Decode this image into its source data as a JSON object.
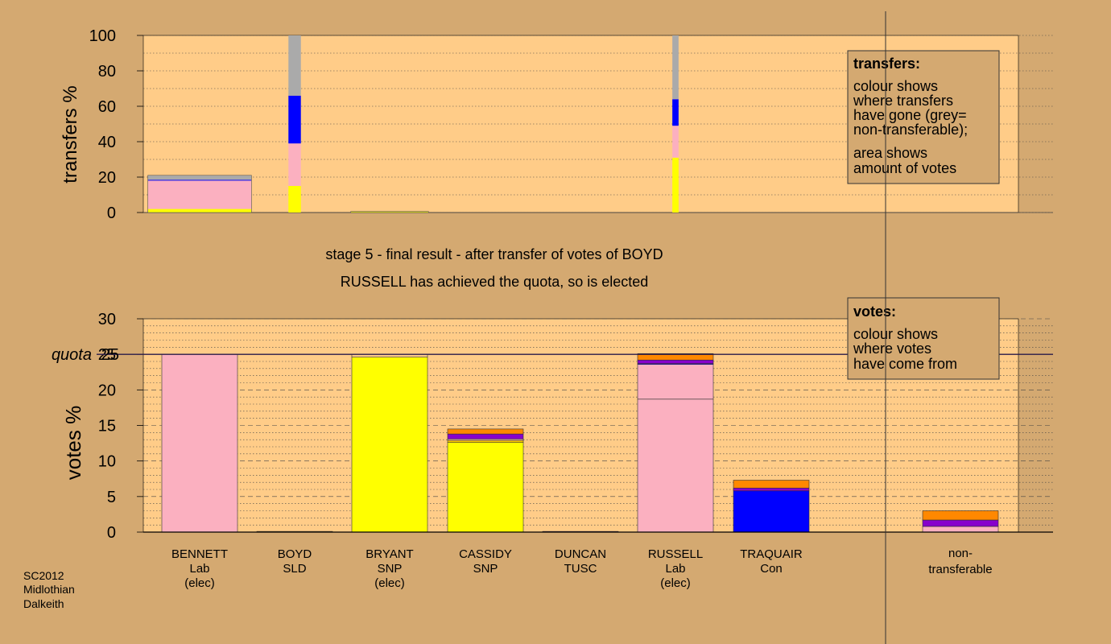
{
  "heading": {
    "line1": "stage 5 - final result - after transfer of votes of BOYD",
    "line2": "RUSSELL has achieved the quota, so is elected"
  },
  "footer": {
    "line1": "SC2012",
    "line2": "Midlothian",
    "line3": "Dalkeith"
  },
  "colors": {
    "background": "#d4a971",
    "plot_area": "#ffcc88",
    "Lab": "#fbb0c0",
    "SNP": "#ffff00",
    "Con": "#0000ff",
    "SLD": "#ffcc00",
    "TUSC": "#8800cc",
    "other": "#ff8800",
    "nontransferable": "#aaaaaa"
  },
  "chart_data": [
    {
      "type": "bar",
      "name": "transfers",
      "ylabel": "transfers %",
      "ylim": [
        0,
        100
      ],
      "yticks": [
        0,
        20,
        40,
        60,
        80,
        100
      ],
      "legend": {
        "title": "transfers:",
        "lines": [
          "colour shows",
          "where transfers",
          "have gone (grey=",
          "non-transferable);",
          "area shows",
          "amount of votes"
        ]
      },
      "bars": [
        {
          "category": "BENNETT",
          "width": 1.0,
          "segments": [
            {
              "color": "#ffff00",
              "value": 2
            },
            {
              "color": "#fbb0c0",
              "value": 16
            },
            {
              "color": "#0000ff",
              "value": 0.5
            },
            {
              "color": "#aaaaaa",
              "value": 2.5
            }
          ]
        },
        {
          "category": "BOYD",
          "width": 0.12,
          "segments": [
            {
              "color": "#ffff00",
              "value": 15
            },
            {
              "color": "#fbb0c0",
              "value": 24
            },
            {
              "color": "#0000ff",
              "value": 27
            },
            {
              "color": "#aaaaaa",
              "value": 34
            }
          ]
        },
        {
          "category": "BRYANT",
          "width": 0.75,
          "segments": [
            {
              "color": "#ffff00",
              "value": 0.6
            }
          ]
        },
        {
          "category": "RUSSELL",
          "width": 0.06,
          "segments": [
            {
              "color": "#ffff00",
              "value": 31
            },
            {
              "color": "#fbb0c0",
              "value": 18
            },
            {
              "color": "#0000ff",
              "value": 15
            },
            {
              "color": "#aaaaaa",
              "value": 36
            }
          ]
        }
      ]
    },
    {
      "type": "bar",
      "name": "votes",
      "ylabel": "votes %",
      "ylim": [
        0,
        30
      ],
      "yticks": [
        0,
        5,
        10,
        15,
        20,
        25,
        30
      ],
      "quota": 25,
      "quota_label": "quota",
      "legend": {
        "title": "votes:",
        "lines": [
          "colour shows",
          "where votes",
          "have come from"
        ]
      },
      "categories": [
        {
          "name": "BENNETT",
          "party": "Lab",
          "note": "(elec)"
        },
        {
          "name": "BOYD",
          "party": "SLD",
          "note": ""
        },
        {
          "name": "BRYANT",
          "party": "SNP",
          "note": "(elec)"
        },
        {
          "name": "CASSIDY",
          "party": "SNP",
          "note": ""
        },
        {
          "name": "DUNCAN",
          "party": "TUSC",
          "note": ""
        },
        {
          "name": "RUSSELL",
          "party": "Lab",
          "note": "(elec)"
        },
        {
          "name": "TRAQUAIR",
          "party": "Con",
          "note": ""
        }
      ],
      "nontransferable_label": [
        "non-",
        "transferable"
      ],
      "bars": [
        {
          "category": "BENNETT",
          "segments": [
            {
              "color": "#fbb0c0",
              "value": 25.0
            }
          ]
        },
        {
          "category": "BOYD",
          "segments": [
            {
              "color": "#ffcc00",
              "value": 0.1
            }
          ]
        },
        {
          "category": "BRYANT",
          "segments": [
            {
              "color": "#ffff00",
              "value": 24.6
            },
            {
              "color": "#ffcc88",
              "value": 0.4
            }
          ]
        },
        {
          "category": "CASSIDY",
          "segments": [
            {
              "color": "#ffff00",
              "value": 12.6
            },
            {
              "color": "#ffcc00",
              "value": 0.3
            },
            {
              "color": "#fbb0c0",
              "value": 0.2
            },
            {
              "color": "#8800cc",
              "value": 0.7
            },
            {
              "color": "#ff8800",
              "value": 0.7
            }
          ]
        },
        {
          "category": "DUNCAN",
          "segments": [
            {
              "color": "#8800cc",
              "value": 0.1
            }
          ]
        },
        {
          "category": "RUSSELL",
          "segments": [
            {
              "color": "#fbb0c0",
              "value": 18.7
            },
            {
              "color": "#fbb0c0",
              "value": 4.9
            },
            {
              "color": "#0000ff",
              "value": 0.1
            },
            {
              "color": "#8800cc",
              "value": 0.5
            },
            {
              "color": "#ff8800",
              "value": 0.9
            }
          ]
        },
        {
          "category": "TRAQUAIR",
          "segments": [
            {
              "color": "#0000ff",
              "value": 5.8
            },
            {
              "color": "#8800cc",
              "value": 0.4
            },
            {
              "color": "#ff8800",
              "value": 1.1
            }
          ]
        },
        {
          "category": "non-transferable",
          "segments": [
            {
              "color": "#fbb0c0",
              "value": 0.8
            },
            {
              "color": "#8800cc",
              "value": 0.9
            },
            {
              "color": "#ff8800",
              "value": 1.3
            }
          ]
        }
      ]
    }
  ]
}
